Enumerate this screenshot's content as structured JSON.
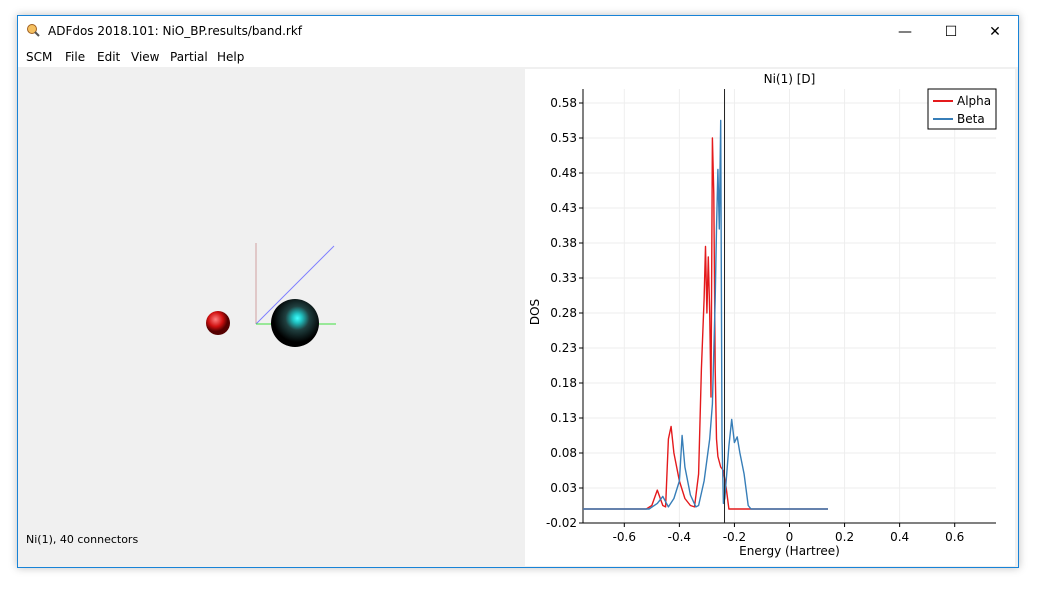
{
  "window": {
    "title": "ADFdos 2018.101: NiO_BP.results/band.rkf",
    "minimize": "—",
    "maximize": "☐",
    "close": "✕"
  },
  "menu": [
    "SCM",
    "File",
    "Edit",
    "View",
    "Partial",
    "Help"
  ],
  "status": "Ni(1), 40 connectors",
  "chart_data": {
    "type": "line",
    "title": "Ni(1) [D]",
    "xlabel": "Energy (Hartree)",
    "ylabel": "DOS",
    "xlim": [
      -0.75,
      0.75
    ],
    "ylim": [
      -0.02,
      0.6
    ],
    "xticks": [
      -0.6,
      -0.4,
      -0.2,
      0,
      0.2,
      0.4,
      0.6
    ],
    "yticks": [
      -0.02,
      0.03,
      0.08,
      0.13,
      0.18,
      0.23,
      0.28,
      0.33,
      0.38,
      0.43,
      0.48,
      0.53,
      0.58
    ],
    "grid": true,
    "legend": "top-right",
    "fermi_level": -0.236,
    "series": [
      {
        "name": "Alpha",
        "color": "#e41a1c",
        "x": [
          -0.75,
          -0.52,
          -0.5,
          -0.48,
          -0.46,
          -0.45,
          -0.44,
          -0.43,
          -0.42,
          -0.4,
          -0.38,
          -0.36,
          -0.345,
          -0.33,
          -0.32,
          -0.31,
          -0.305,
          -0.3,
          -0.295,
          -0.29,
          -0.285,
          -0.28,
          -0.275,
          -0.27,
          -0.265,
          -0.26,
          -0.25,
          -0.24,
          -0.23,
          -0.22,
          -0.12,
          0.14
        ],
        "y": [
          0,
          0,
          0.005,
          0.027,
          0.005,
          0.003,
          0.1,
          0.118,
          0.08,
          0.04,
          0.015,
          0.005,
          0.003,
          0.05,
          0.2,
          0.3,
          0.375,
          0.28,
          0.36,
          0.28,
          0.16,
          0.53,
          0.45,
          0.2,
          0.1,
          0.075,
          0.06,
          0.055,
          0.03,
          0,
          0,
          0
        ]
      },
      {
        "name": "Beta",
        "color": "#377eb8",
        "x": [
          -0.75,
          -0.51,
          -0.48,
          -0.46,
          -0.44,
          -0.42,
          -0.4,
          -0.39,
          -0.38,
          -0.36,
          -0.34,
          -0.33,
          -0.31,
          -0.29,
          -0.28,
          -0.27,
          -0.265,
          -0.26,
          -0.255,
          -0.25,
          -0.245,
          -0.24,
          -0.235,
          -0.22,
          -0.21,
          -0.2,
          -0.19,
          -0.18,
          -0.165,
          -0.15,
          -0.14,
          0.14
        ],
        "y": [
          0,
          0,
          0.008,
          0.018,
          0.003,
          0.015,
          0.04,
          0.105,
          0.06,
          0.02,
          0.003,
          0.005,
          0.04,
          0.1,
          0.15,
          0.3,
          0.4,
          0.485,
          0.4,
          0.555,
          0.1,
          0.008,
          0.015,
          0.09,
          0.128,
          0.095,
          0.103,
          0.08,
          0.05,
          0.005,
          0,
          0
        ]
      }
    ]
  }
}
